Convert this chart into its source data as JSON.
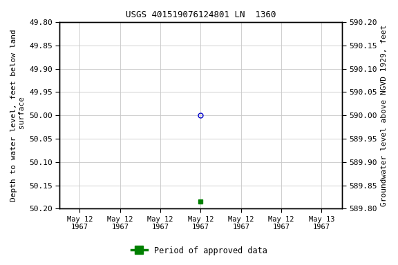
{
  "title": "USGS 401519076124801 LN  1360",
  "ylabel_left": "Depth to water level, feet below land\n surface",
  "ylabel_right": "Groundwater level above NGVD 1929, feet",
  "ylim_left": [
    49.8,
    50.2
  ],
  "ylim_right_top": 590.2,
  "ylim_right_bottom": 589.8,
  "yticks_left": [
    49.8,
    49.85,
    49.9,
    49.95,
    50.0,
    50.05,
    50.1,
    50.15,
    50.2
  ],
  "ytick_labels_left": [
    "49.80",
    "49.85",
    "49.90",
    "49.95",
    "50.00",
    "50.05",
    "50.10",
    "50.15",
    "50.20"
  ],
  "yticks_right": [
    590.2,
    590.15,
    590.1,
    590.05,
    590.0,
    589.95,
    589.9,
    589.85,
    589.8
  ],
  "ytick_labels_right": [
    "590.20",
    "590.15",
    "590.10",
    "590.05",
    "590.00",
    "589.95",
    "589.90",
    "589.85",
    "589.80"
  ],
  "data_x_circle": 3,
  "data_y_circle": 50.0,
  "data_x_square": 3,
  "data_y_square": 50.185,
  "circle_color": "#0000cc",
  "square_color": "#008000",
  "background_color": "#ffffff",
  "grid_color": "#c8c8c8",
  "xtick_positions": [
    0,
    1,
    2,
    3,
    4,
    5,
    6
  ],
  "xtick_labels": [
    "May 12\n1967",
    "May 12\n1967",
    "May 12\n1967",
    "May 12\n1967",
    "May 12\n1967",
    "May 12\n1967",
    "May 13\n1967"
  ],
  "xlim": [
    -0.5,
    6.5
  ],
  "legend_label": "Period of approved data",
  "legend_color": "#008000"
}
